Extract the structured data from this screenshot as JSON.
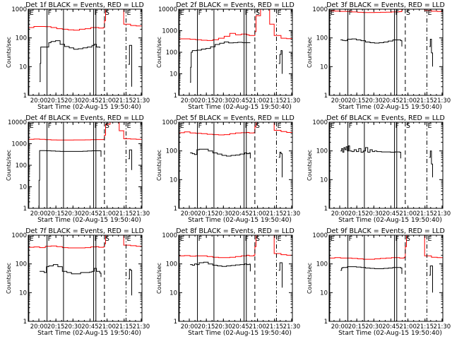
{
  "chart_data": {
    "type": "line",
    "layout": "3x3 grid",
    "common": {
      "xlabel": "Start Time (02-Aug-15 19:50:40)",
      "ylabel": "Counts/sec",
      "x_tick_labels": [
        "20:00",
        "20:15",
        "20:30",
        "20:45",
        "21:00",
        "21:15",
        "21:30"
      ],
      "x_ticks_minutes_after_start": [
        9.33,
        24.33,
        39.33,
        54.33,
        69.33,
        84.33,
        99.33
      ],
      "xlim_minutes": [
        0,
        100
      ],
      "yscale": "log",
      "series_colors": {
        "Events": "#000000",
        "LLD": "#ff0000"
      },
      "markers": [
        {
          "label": "E",
          "minute": 0.5,
          "style": "solid"
        },
        {
          "label": "F",
          "minute": 16.5,
          "style": "solid"
        },
        {
          "label": "",
          "minute": 31,
          "style": "solid"
        },
        {
          "label": "F",
          "minute": 57.5,
          "style": "solid"
        },
        {
          "label": "",
          "minute": 59.5,
          "style": "solid"
        },
        {
          "label": "S",
          "minute": 67,
          "style": "dashed"
        },
        {
          "label": "E",
          "minute": 86,
          "style": "dashdot"
        },
        {
          "label": "",
          "minute": 101,
          "style": "dotted"
        }
      ]
    },
    "panels": [
      {
        "title": "Det 1f BLACK = Events, RED = LLD",
        "ylim": [
          1,
          1000
        ],
        "y_tick_labels": [
          "1",
          "10",
          "100",
          "1000"
        ],
        "events": {
          "x": [
            10,
            10.5,
            11,
            12,
            16,
            18,
            20,
            24,
            28,
            32,
            36,
            40,
            44,
            48,
            52,
            56,
            58,
            60,
            63
          ],
          "y": [
            3,
            13,
            48,
            48,
            48,
            68,
            75,
            80,
            60,
            50,
            45,
            40,
            42,
            45,
            48,
            55,
            60,
            48,
            45
          ]
        },
        "events_tail": {
          "x": [
            88,
            89,
            90,
            91
          ],
          "y": [
            12,
            55,
            55,
            2
          ]
        },
        "lld": {
          "x": [
            0,
            5,
            10,
            15,
            20,
            25,
            30,
            35,
            40,
            45,
            50,
            55,
            60,
            62,
            66,
            67,
            68,
            72,
            78,
            80,
            84,
            90,
            95,
            100
          ],
          "y": [
            230,
            250,
            250,
            245,
            230,
            210,
            200,
            190,
            185,
            200,
            210,
            230,
            230,
            220,
            230,
            400,
            1200,
            1200,
            1200,
            1000,
            300,
            270,
            260,
            240
          ]
        }
      },
      {
        "title": "Det 2f BLACK = Events, RED = LLD",
        "ylim": [
          1,
          10000
        ],
        "y_tick_labels": [
          "1",
          "10",
          "100",
          "1000",
          "10000"
        ],
        "events": {
          "x": [
            10,
            10.5,
            11,
            12,
            16,
            20,
            24,
            28,
            32,
            36,
            40,
            44,
            48,
            52,
            56,
            60,
            63
          ],
          "y": [
            4,
            20,
            100,
            120,
            125,
            140,
            150,
            180,
            230,
            260,
            300,
            270,
            280,
            290,
            280,
            280,
            280
          ]
        },
        "events_tail": {
          "x": [
            88,
            89,
            90,
            91
          ],
          "y": [
            30,
            80,
            120,
            10
          ]
        },
        "lld": {
          "x": [
            0,
            5,
            10,
            15,
            20,
            25,
            30,
            35,
            40,
            45,
            50,
            55,
            60,
            62,
            66,
            67,
            68,
            72,
            78,
            80,
            84,
            90,
            95,
            100
          ],
          "y": [
            420,
            420,
            400,
            380,
            360,
            350,
            380,
            450,
            550,
            750,
            650,
            700,
            650,
            600,
            600,
            900,
            5000,
            20000,
            20000,
            2000,
            600,
            450,
            430,
            420
          ]
        }
      },
      {
        "title": "Det 3f BLACK = Events, RED = LLD",
        "ylim": [
          1,
          1000
        ],
        "y_tick_labels": [
          "1",
          "10",
          "100",
          "1000"
        ],
        "events": {
          "x": [
            10,
            12,
            14,
            16,
            20,
            24,
            28,
            32,
            36,
            40,
            44,
            48,
            52,
            56,
            60,
            63,
            64
          ],
          "y": [
            85,
            82,
            80,
            90,
            92,
            85,
            80,
            72,
            68,
            66,
            68,
            72,
            78,
            85,
            85,
            80,
            50
          ]
        },
        "events_tail": {
          "x": [
            88,
            89,
            90,
            91
          ],
          "y": [
            50,
            90,
            30,
            10
          ]
        },
        "lld": {
          "x": [
            0,
            5,
            10,
            15,
            20,
            25,
            30,
            35,
            40,
            45,
            50,
            55,
            60,
            62,
            64,
            66,
            80,
            84,
            90,
            95,
            100
          ],
          "y": [
            880,
            860,
            840,
            830,
            800,
            780,
            760,
            760,
            770,
            780,
            790,
            800,
            810,
            820,
            1200,
            1200,
            1200,
            900,
            850,
            830,
            820
          ]
        }
      },
      {
        "title": "Det 4f BLACK = Events, RED = LLD",
        "ylim": [
          1,
          10000
        ],
        "y_tick_labels": [
          "1",
          "10",
          "100",
          "1000",
          "10000"
        ],
        "events": {
          "x": [
            9,
            9.5,
            10,
            11,
            16,
            20,
            24,
            28,
            32,
            36,
            40,
            44,
            48,
            52,
            56,
            60,
            63,
            64
          ],
          "y": [
            1,
            20,
            480,
            480,
            470,
            460,
            450,
            440,
            440,
            440,
            440,
            440,
            450,
            460,
            470,
            470,
            470,
            250
          ]
        },
        "events_tail": {
          "x": [
            88,
            89,
            90,
            91
          ],
          "y": [
            200,
            520,
            520,
            60
          ]
        },
        "lld": {
          "x": [
            0,
            5,
            10,
            15,
            20,
            25,
            30,
            35,
            40,
            45,
            50,
            55,
            60,
            62,
            66,
            67,
            68,
            72,
            76,
            80,
            84,
            90,
            95,
            100
          ],
          "y": [
            1600,
            1650,
            1600,
            1550,
            1500,
            1480,
            1480,
            1480,
            1500,
            1500,
            1520,
            1550,
            1560,
            1560,
            1600,
            2500,
            8000,
            20000,
            20000,
            4000,
            1700,
            1650,
            1600,
            1600
          ]
        }
      },
      {
        "title": "Det 5f BLACK = Events, RED = LLD",
        "ylim": [
          1,
          1000
        ],
        "y_tick_labels": [
          "1",
          "10",
          "100",
          "1000"
        ],
        "events": {
          "x": [
            10,
            12,
            14,
            16,
            18,
            22,
            26,
            30,
            34,
            38,
            42,
            46,
            50,
            54,
            58,
            60,
            62,
            63
          ],
          "y": [
            85,
            80,
            75,
            110,
            115,
            115,
            100,
            85,
            78,
            70,
            66,
            70,
            72,
            78,
            85,
            80,
            85,
            55
          ]
        },
        "events_tail": {
          "x": [
            88,
            89,
            90,
            91
          ],
          "y": [
            60,
            90,
            80,
            12
          ]
        },
        "lld": {
          "x": [
            0,
            5,
            10,
            15,
            20,
            25,
            30,
            35,
            40,
            45,
            50,
            55,
            60,
            62,
            66,
            67,
            68,
            72,
            80,
            84,
            90,
            95,
            100
          ],
          "y": [
            430,
            460,
            420,
            410,
            400,
            380,
            370,
            360,
            370,
            400,
            420,
            430,
            440,
            420,
            430,
            700,
            1200,
            1200,
            1200,
            520,
            470,
            440,
            430
          ]
        }
      },
      {
        "title": "Det 6f BLACK = Events, RED = LLD",
        "ylim": [
          1,
          1000
        ],
        "y_tick_labels": [
          "1",
          "10",
          "100",
          "1000"
        ],
        "events": {
          "x": [
            10,
            11,
            12,
            13,
            14,
            15,
            16,
            17,
            18,
            20,
            22,
            24,
            26,
            28,
            30,
            32,
            34,
            36,
            38,
            40,
            42,
            46,
            50,
            54,
            58,
            62,
            63
          ],
          "y": [
            100,
            120,
            90,
            130,
            110,
            140,
            100,
            150,
            100,
            95,
            110,
            95,
            120,
            90,
            100,
            130,
            90,
            110,
            95,
            100,
            95,
            92,
            92,
            90,
            92,
            90,
            55
          ]
        },
        "events_tail": {
          "x": [
            88,
            89,
            90,
            91
          ],
          "y": [
            60,
            100,
            35,
            12
          ]
        },
        "lld": {
          "x": [],
          "y": []
        }
      },
      {
        "title": "Det 7f BLACK = Events, RED = LLD",
        "ylim": [
          1,
          1000
        ],
        "y_tick_labels": [
          "1",
          "10",
          "100",
          "1000"
        ],
        "events": {
          "x": [
            10,
            12,
            14,
            16,
            18,
            22,
            26,
            30,
            34,
            38,
            42,
            46,
            50,
            54,
            56,
            58,
            60,
            63,
            64
          ],
          "y": [
            55,
            55,
            50,
            80,
            85,
            95,
            80,
            55,
            50,
            45,
            45,
            50,
            50,
            52,
            55,
            70,
            55,
            48,
            35
          ]
        },
        "events_tail": {
          "x": [
            88,
            89,
            90,
            91
          ],
          "y": [
            30,
            65,
            60,
            8
          ]
        },
        "lld": {
          "x": [
            0,
            5,
            10,
            15,
            20,
            25,
            30,
            35,
            40,
            45,
            50,
            55,
            60,
            62,
            66,
            67,
            68,
            72,
            80,
            84,
            90,
            95,
            100
          ],
          "y": [
            380,
            390,
            370,
            410,
            420,
            400,
            370,
            360,
            360,
            360,
            370,
            390,
            400,
            380,
            390,
            500,
            1200,
            1200,
            1200,
            450,
            430,
            410,
            400
          ]
        }
      },
      {
        "title": "Det 8f BLACK = Events, RED = LLD",
        "ylim": [
          1,
          1000
        ],
        "y_tick_labels": [
          "1",
          "10",
          "100",
          "1000"
        ],
        "events": {
          "x": [
            10,
            12,
            14,
            16,
            18,
            22,
            26,
            30,
            34,
            38,
            42,
            46,
            50,
            54,
            58,
            60,
            62,
            63
          ],
          "y": [
            95,
            90,
            100,
            95,
            110,
            115,
            100,
            90,
            85,
            82,
            85,
            88,
            92,
            95,
            100,
            95,
            98,
            55
          ]
        },
        "events_tail": {
          "x": [
            88,
            89,
            90,
            91
          ],
          "y": [
            60,
            110,
            110,
            15
          ]
        },
        "lld": {
          "x": [
            0,
            5,
            10,
            15,
            20,
            25,
            30,
            35,
            40,
            45,
            50,
            55,
            60,
            62,
            66,
            67,
            68,
            72,
            80,
            84,
            90,
            95,
            100
          ],
          "y": [
            190,
            195,
            185,
            190,
            190,
            180,
            170,
            165,
            165,
            170,
            180,
            190,
            200,
            190,
            200,
            400,
            1200,
            1200,
            1200,
            230,
            210,
            200,
            195
          ]
        }
      },
      {
        "title": "Det 9f BLACK = Events, RED = LLD",
        "ylim": [
          1,
          1000
        ],
        "y_tick_labels": [
          "1",
          "10",
          "100",
          "1000"
        ],
        "events": {
          "x": [
            10,
            11,
            12,
            16,
            20,
            24,
            28,
            32,
            36,
            40,
            44,
            48,
            52,
            56,
            60,
            63,
            64
          ],
          "y": [
            60,
            72,
            75,
            80,
            80,
            78,
            75,
            72,
            70,
            68,
            68,
            70,
            72,
            75,
            75,
            72,
            45
          ]
        },
        "events_tail": {
          "x": [
            88,
            89,
            90,
            91
          ],
          "y": [
            40,
            85,
            85,
            10
          ]
        },
        "lld": {
          "x": [
            0,
            5,
            10,
            15,
            20,
            25,
            30,
            35,
            40,
            45,
            50,
            55,
            60,
            62,
            66,
            67,
            68,
            74,
            80,
            84,
            90,
            95,
            100
          ],
          "y": [
            160,
            165,
            160,
            160,
            155,
            150,
            145,
            145,
            150,
            155,
            160,
            165,
            165,
            160,
            170,
            400,
            1200,
            1200,
            1200,
            190,
            170,
            165,
            160
          ]
        }
      }
    ]
  }
}
